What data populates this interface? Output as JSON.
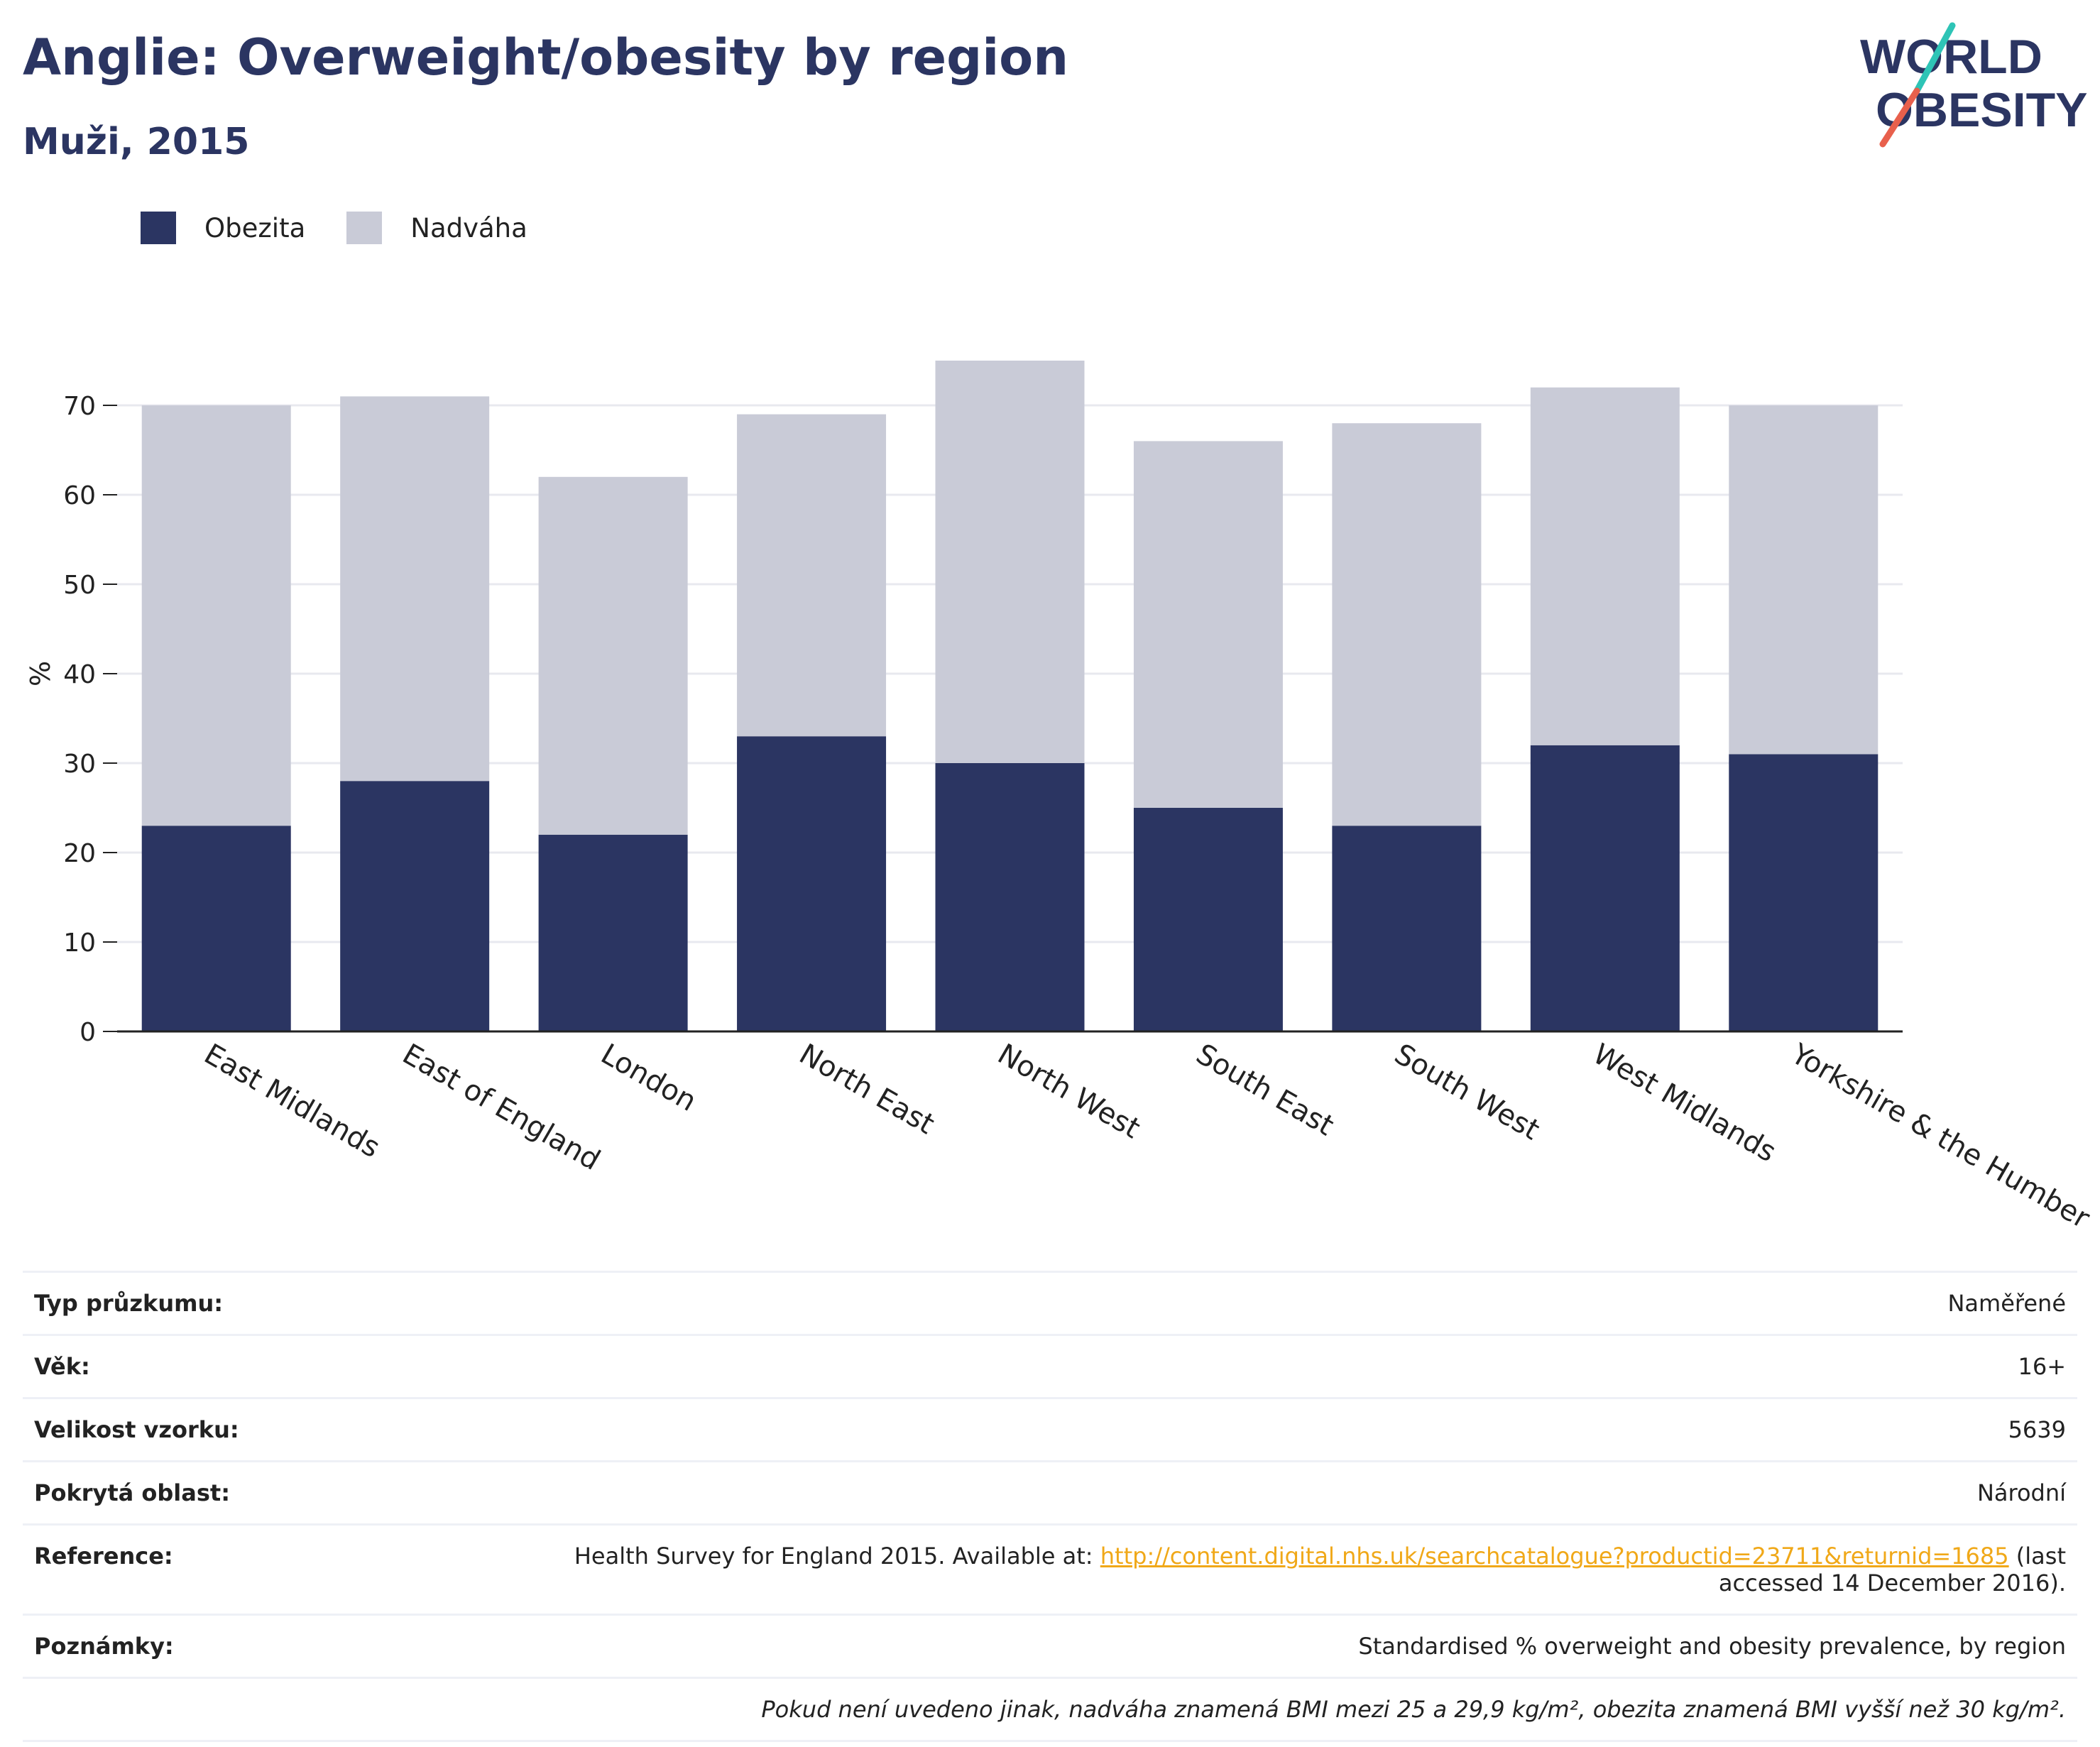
{
  "header": {
    "title": "Anglie: Overweight/obesity by region",
    "subtitle": "Muži, 2015"
  },
  "logo": {
    "line1": "WORLD",
    "line2": "OBESITY"
  },
  "legend": {
    "items": [
      {
        "label": "Obezita",
        "color": "#2b3562"
      },
      {
        "label": "Nadváha",
        "color": "#c9cbd7"
      }
    ]
  },
  "chart_data": {
    "type": "bar",
    "stacked": true,
    "ylabel": "%",
    "ylim": [
      0,
      80
    ],
    "yticks": [
      0,
      10,
      20,
      30,
      40,
      50,
      60,
      70
    ],
    "categories": [
      "East Midlands",
      "East of England",
      "London",
      "North East",
      "North West",
      "South East",
      "South West",
      "West Midlands",
      "Yorkshire & the Humber"
    ],
    "series": [
      {
        "name": "Obezita",
        "color": "#2b3562",
        "values": [
          23,
          28,
          22,
          33,
          30,
          25,
          23,
          32,
          31
        ]
      },
      {
        "name": "Nadváha",
        "color": "#c9cbd7",
        "values": [
          47,
          43,
          40,
          36,
          45,
          41,
          45,
          40,
          39
        ]
      }
    ],
    "grid": true,
    "legend_position": "top-left"
  },
  "meta": {
    "rows": [
      {
        "key": "Typ průzkumu:",
        "value": "Naměřené"
      },
      {
        "key": "Věk:",
        "value": "16+"
      },
      {
        "key": "Velikost vzorku:",
        "value": "5639"
      },
      {
        "key": "Pokrytá oblast:",
        "value": "Národní"
      }
    ],
    "reference": {
      "key": "Reference:",
      "prefix": "Health Survey for England 2015. Available at: ",
      "link": "http://content.digital.nhs.uk/searchcatalogue?productid=23711&returnid=1685",
      "suffix_1": " (last",
      "suffix_2": "accessed 14 December 2016)."
    },
    "notes": {
      "key": "Poznámky:",
      "value": "Standardised % overweight and obesity prevalence, by region"
    },
    "footnote": "Pokud není uvedeno jinak, nadváha znamená BMI mezi 25 a 29,9 kg/m², obezita znamená BMI vyšší než 30 kg/m²."
  }
}
